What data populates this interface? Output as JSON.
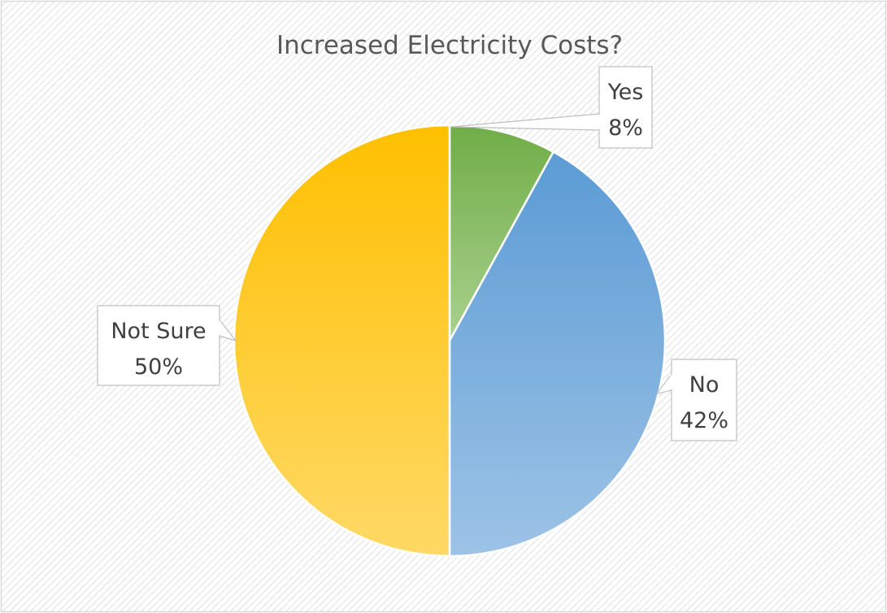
{
  "chart_data": {
    "type": "pie",
    "title": "Increased Electricity Costs?",
    "slices": [
      {
        "label": "Yes",
        "value": 8,
        "value_label": "8%"
      },
      {
        "label": "No",
        "value": 42,
        "value_label": "42%"
      },
      {
        "label": "Not Sure",
        "value": 50,
        "value_label": "50%"
      }
    ],
    "start_angle_deg": 0,
    "direction": "clockwise",
    "legend": "none",
    "data_labels": "callouts"
  },
  "colors": {
    "yes_top": "#70AD47",
    "yes_bottom": "#A9D18E",
    "no_top": "#5B9BD5",
    "no_bottom": "#9DC3E6",
    "notsure_top": "#FFC000",
    "notsure_bottom": "#FFD966",
    "hatch": "#d9d9d9",
    "border": "#d9d9d9",
    "slice_stroke": "#ffffff"
  }
}
